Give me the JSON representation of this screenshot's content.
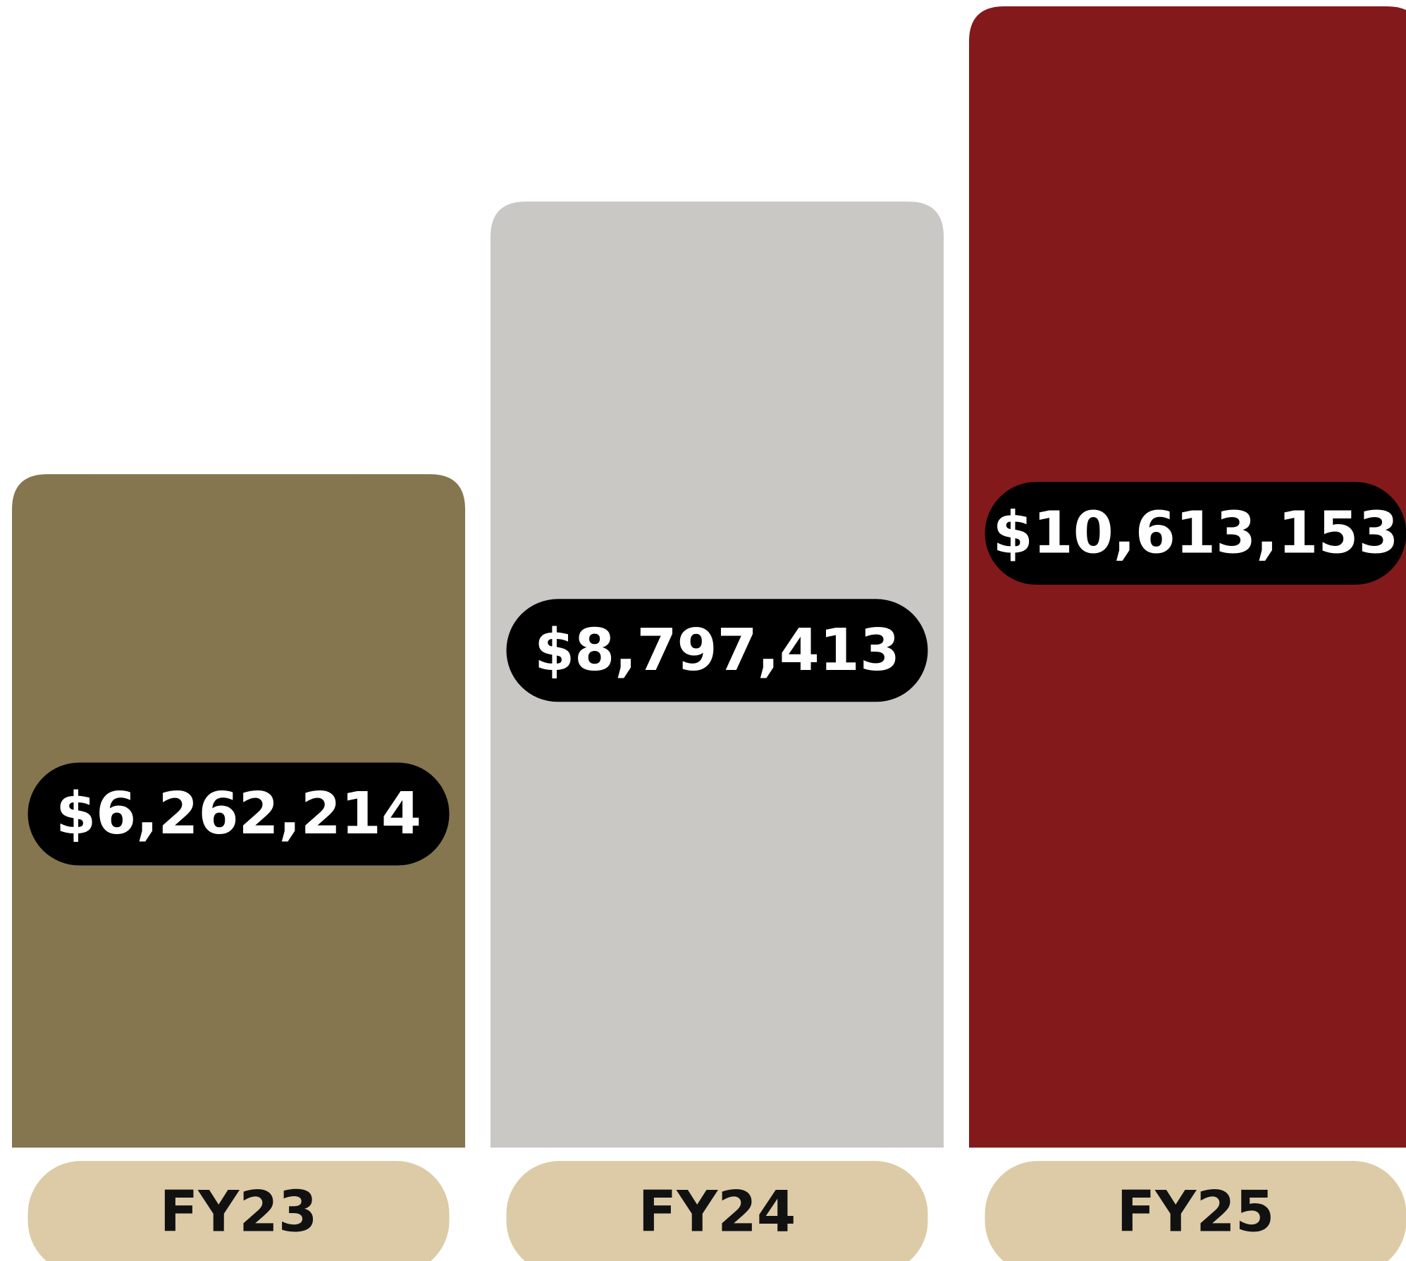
{
  "chart_data": {
    "type": "bar",
    "categories": [
      "FY23",
      "FY24",
      "FY25"
    ],
    "values": [
      6262214,
      8797413,
      10613153
    ],
    "value_labels": [
      "$6,262,214",
      "$8,797,413",
      "$10,613,153"
    ],
    "colors": [
      "#85764f",
      "#c9c8c5",
      "#84191b"
    ]
  }
}
